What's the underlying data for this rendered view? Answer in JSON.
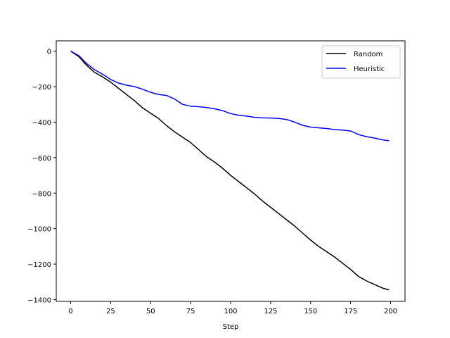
{
  "chart_data": {
    "type": "line",
    "title": "",
    "xlabel": "Step",
    "ylabel": "",
    "xlim": [
      -9,
      209
    ],
    "ylim": [
      -1410,
      58
    ],
    "xticks": [
      0,
      25,
      50,
      75,
      100,
      125,
      150,
      175,
      200
    ],
    "yticks": [
      0,
      -200,
      -400,
      -600,
      -800,
      -1000,
      -1200,
      -1400
    ],
    "grid": false,
    "legend_position": "top-right",
    "series": [
      {
        "name": "Random",
        "color": "#000000",
        "x": [
          0,
          5,
          10,
          15,
          20,
          25,
          30,
          35,
          40,
          45,
          50,
          55,
          60,
          65,
          70,
          75,
          80,
          85,
          90,
          95,
          100,
          105,
          110,
          115,
          120,
          125,
          130,
          135,
          140,
          145,
          150,
          155,
          160,
          165,
          170,
          175,
          180,
          185,
          190,
          195,
          199
        ],
        "y": [
          0,
          -30,
          -80,
          -120,
          -145,
          -175,
          -210,
          -245,
          -280,
          -320,
          -350,
          -380,
          -420,
          -455,
          -485,
          -515,
          -555,
          -595,
          -625,
          -660,
          -700,
          -735,
          -770,
          -805,
          -845,
          -880,
          -915,
          -950,
          -985,
          -1025,
          -1065,
          -1100,
          -1130,
          -1160,
          -1195,
          -1230,
          -1270,
          -1295,
          -1315,
          -1335,
          -1345
        ]
      },
      {
        "name": "Heuristic",
        "color": "#0000ff",
        "x": [
          0,
          5,
          10,
          15,
          20,
          25,
          30,
          35,
          40,
          45,
          50,
          55,
          60,
          65,
          70,
          75,
          80,
          85,
          90,
          95,
          100,
          105,
          110,
          115,
          120,
          125,
          130,
          135,
          140,
          145,
          150,
          155,
          160,
          165,
          170,
          175,
          180,
          185,
          190,
          195,
          199
        ],
        "y": [
          0,
          -25,
          -70,
          -105,
          -130,
          -160,
          -180,
          -192,
          -200,
          -215,
          -232,
          -244,
          -250,
          -270,
          -300,
          -310,
          -313,
          -318,
          -325,
          -335,
          -352,
          -361,
          -366,
          -373,
          -376,
          -377,
          -379,
          -385,
          -400,
          -418,
          -428,
          -432,
          -436,
          -442,
          -445,
          -450,
          -470,
          -482,
          -490,
          -500,
          -505
        ]
      }
    ]
  }
}
